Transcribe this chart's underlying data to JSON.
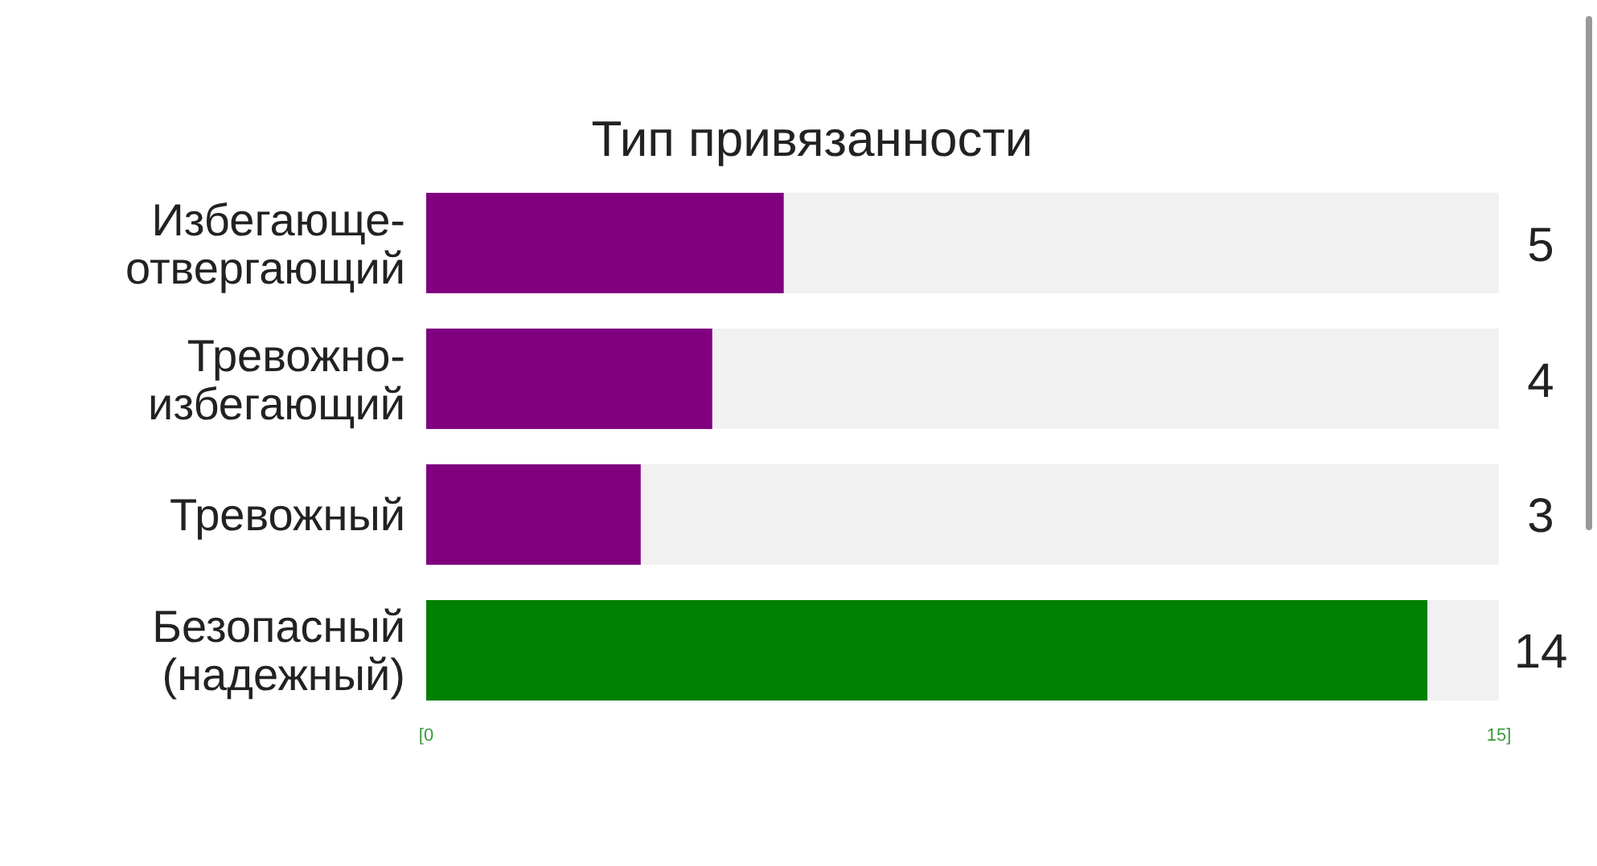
{
  "chart_data": {
    "type": "bar",
    "orientation": "horizontal",
    "title": "Тип привязанности",
    "categories": [
      "Избегающе-\nотвергающий",
      "Тревожно-\nизбегающий",
      "Тревожный",
      "Безопасный\n(надежный)"
    ],
    "values": [
      5,
      4,
      3,
      14
    ],
    "colors": [
      "#800080",
      "#800080",
      "#800080",
      "#008000"
    ],
    "xlim": [
      0,
      15
    ],
    "xticks": [
      {
        "value": 0,
        "label": "[0"
      },
      {
        "value": 15,
        "label": "15]"
      }
    ],
    "data_labels": true,
    "grid": false
  }
}
